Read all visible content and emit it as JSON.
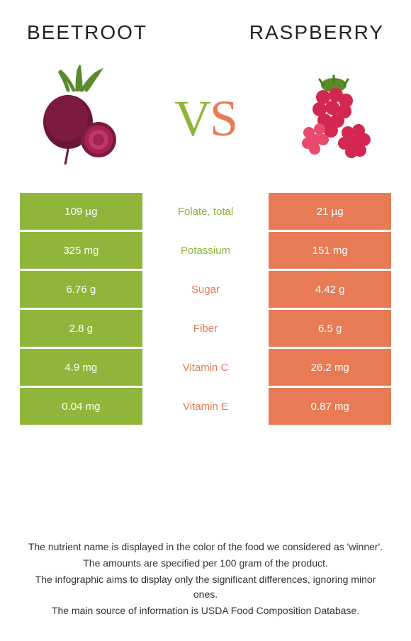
{
  "foods": {
    "left": {
      "name": "Beetroot",
      "color": "#8fb63a"
    },
    "right": {
      "name": "Raspberry",
      "color": "#e87a55"
    }
  },
  "vs": {
    "v": "V",
    "s": "S"
  },
  "colors": {
    "green": "#8fb63a",
    "orange": "#e87a55",
    "mid_bg": "#ffffff",
    "white": "#ffffff"
  },
  "rows": [
    {
      "left": "109 µg",
      "label": "Folate, total",
      "right": "21 µg",
      "winner": "left"
    },
    {
      "left": "325 mg",
      "label": "Potassium",
      "right": "151 mg",
      "winner": "left"
    },
    {
      "left": "6.76 g",
      "label": "Sugar",
      "right": "4.42 g",
      "winner": "right"
    },
    {
      "left": "2.8 g",
      "label": "Fiber",
      "right": "6.5 g",
      "winner": "right"
    },
    {
      "left": "4.9 mg",
      "label": "Vitamin C",
      "right": "26.2 mg",
      "winner": "right"
    },
    {
      "left": "0.04 mg",
      "label": "Vitamin E",
      "right": "0.87 mg",
      "winner": "right"
    }
  ],
  "footer": [
    "The nutrient name is displayed in the color of the food we considered as 'winner'.",
    "The amounts are specified per 100 gram of the product.",
    "The infographic aims to display only the significant differences, ignoring minor ones.",
    "The main source of information is USDA Food Composition Database."
  ]
}
